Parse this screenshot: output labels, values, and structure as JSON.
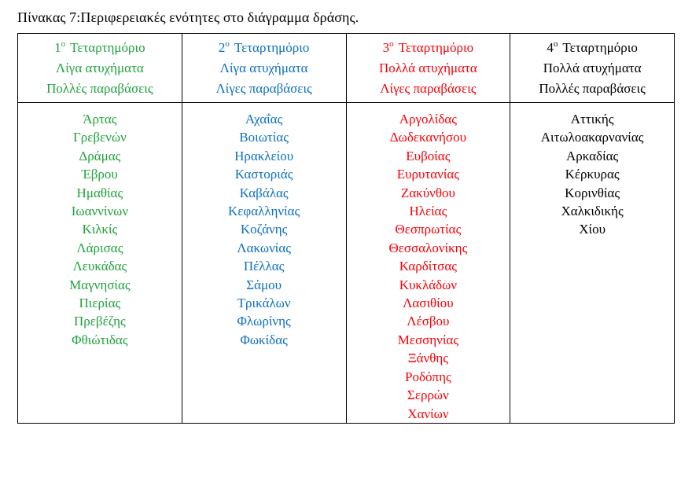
{
  "title": "Πίνακας 7:Περιφερειακές ενότητες στο διάγραμμα δράσης.",
  "table": {
    "columns": [
      {
        "num": "1",
        "ordinal": "ο",
        "quadrant": "Τεταρτημόριο",
        "subtitle1": "Λίγα ατυχήματα",
        "subtitle2": "Πολλές παραβάσεις",
        "color": "#1fa23c",
        "items": [
          "Άρτας",
          "Γρεβενών",
          "Δράμας",
          "Έβρου",
          "Ημαθίας",
          "Ιωαννίνων",
          "Κιλκίς",
          "Λάρισας",
          "Λευκάδας",
          "Μαγνησίας",
          "Πιερίας",
          "Πρεβέζης",
          "Φθιώτιδας"
        ]
      },
      {
        "num": "2",
        "ordinal": "ο",
        "quadrant": "Τεταρτημόριο",
        "subtitle1": "Λίγα ατυχήματα",
        "subtitle2": "Λίγες παραβάσεις",
        "color": "#0b6fc2",
        "items": [
          "Αχαΐας",
          "Βοιωτίας",
          "Ηρακλείου",
          "Καστοριάς",
          "Καβάλας",
          "Κεφαλληνίας",
          "Κοζάνης",
          "Λακωνίας",
          "Πέλλας",
          "Σάμου",
          "Τρικάλων",
          "Φλωρίνης",
          "Φωκίδας"
        ]
      },
      {
        "num": "3",
        "ordinal": "ο",
        "quadrant": "Τεταρτημόριο",
        "subtitle1": "Πολλά ατυχήματα",
        "subtitle2": "Λίγες παραβάσεις",
        "color": "#fb0007",
        "items": [
          "Αργολίδας",
          "Δωδεκανήσου",
          "Ευβοίας",
          "Ευρυτανίας",
          "Ζακύνθου",
          "Ηλείας",
          "Θεσπρωτίας",
          "Θεσσαλονίκης",
          "Καρδίτσας",
          "Κυκλάδων",
          "Λασιθίου",
          "Λέσβου",
          "Μεσσηνίας",
          "Ξάνθης",
          "Ροδόπης",
          "Σερρών",
          "Χανίων"
        ]
      },
      {
        "num": "4",
        "ordinal": "ο",
        "quadrant": "Τεταρτημόριο",
        "subtitle1": "Πολλά ατυχήματα",
        "subtitle2": "Πολλές παραβάσεις",
        "color": "#000000",
        "items": [
          "Αττικής",
          "Αιτωλοακαρνανίας",
          "Αρκαδίας",
          "Κέρκυρας",
          "Κορινθίας",
          "Χαλκιδικής",
          "Χίου"
        ]
      }
    ]
  }
}
